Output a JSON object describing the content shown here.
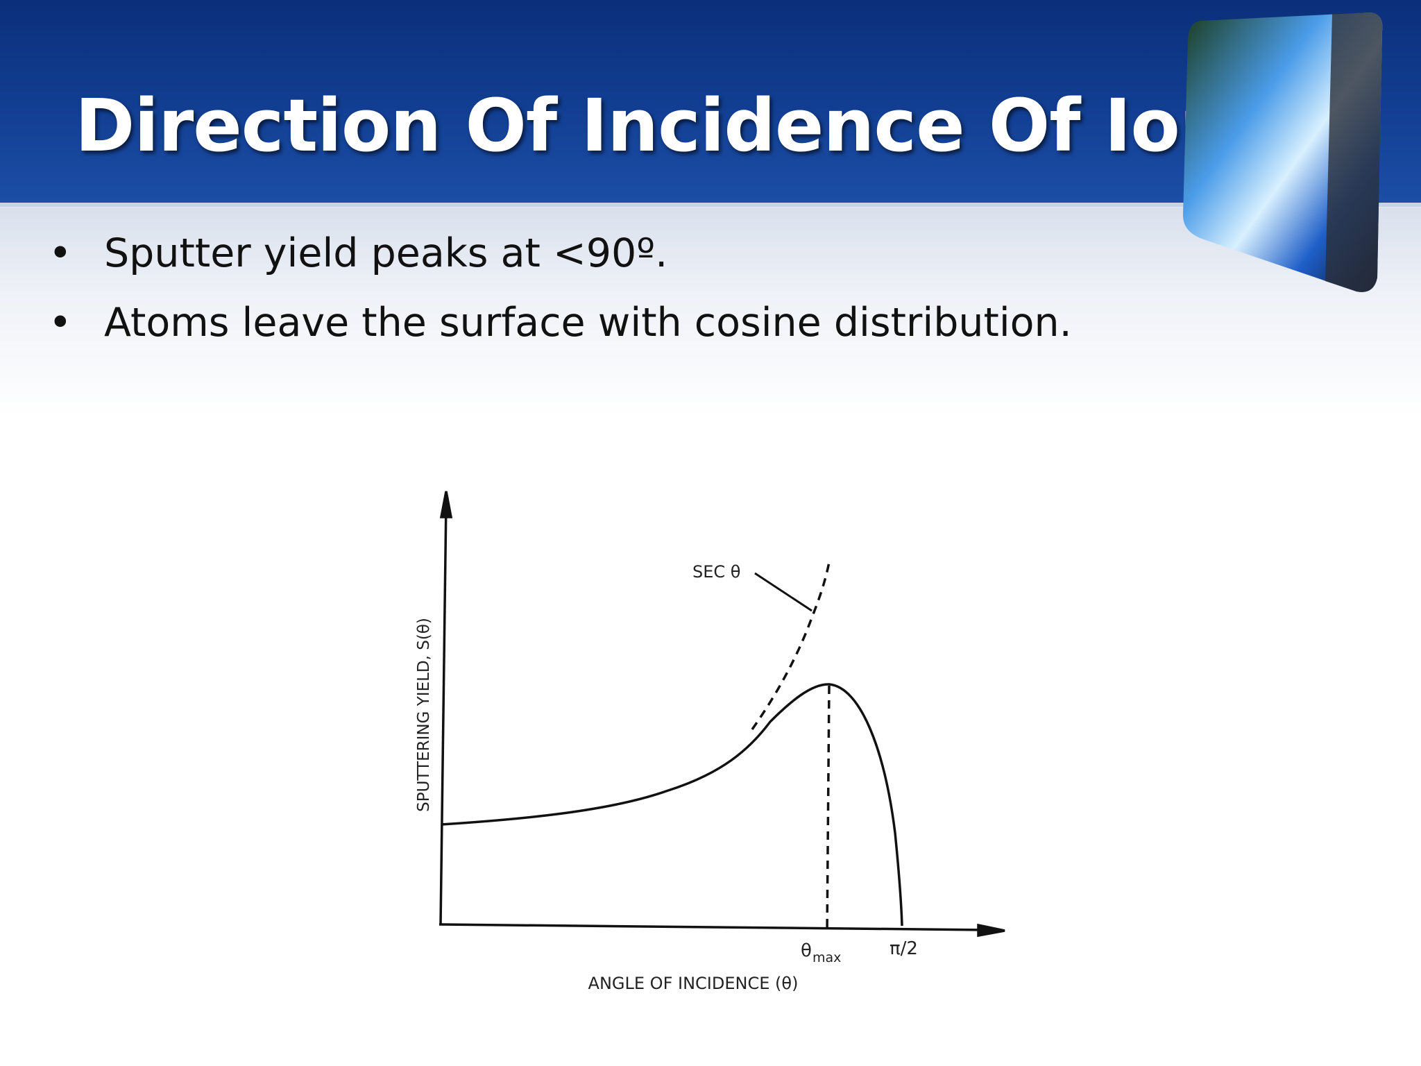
{
  "header": {
    "title": "Direction Of Incidence Of Ions"
  },
  "bullets": [
    "Sputter yield peaks at <90º.",
    "Atoms leave the surface with cosine distribution."
  ],
  "figure": {
    "y_axis_label": "SPUTTERING YIELD, S(θ)",
    "x_axis_label": "ANGLE OF INCIDENCE (θ)",
    "curve_label": "SEC θ",
    "peak_label": "θ",
    "peak_label_sub": "max",
    "end_label": "π/2"
  }
}
